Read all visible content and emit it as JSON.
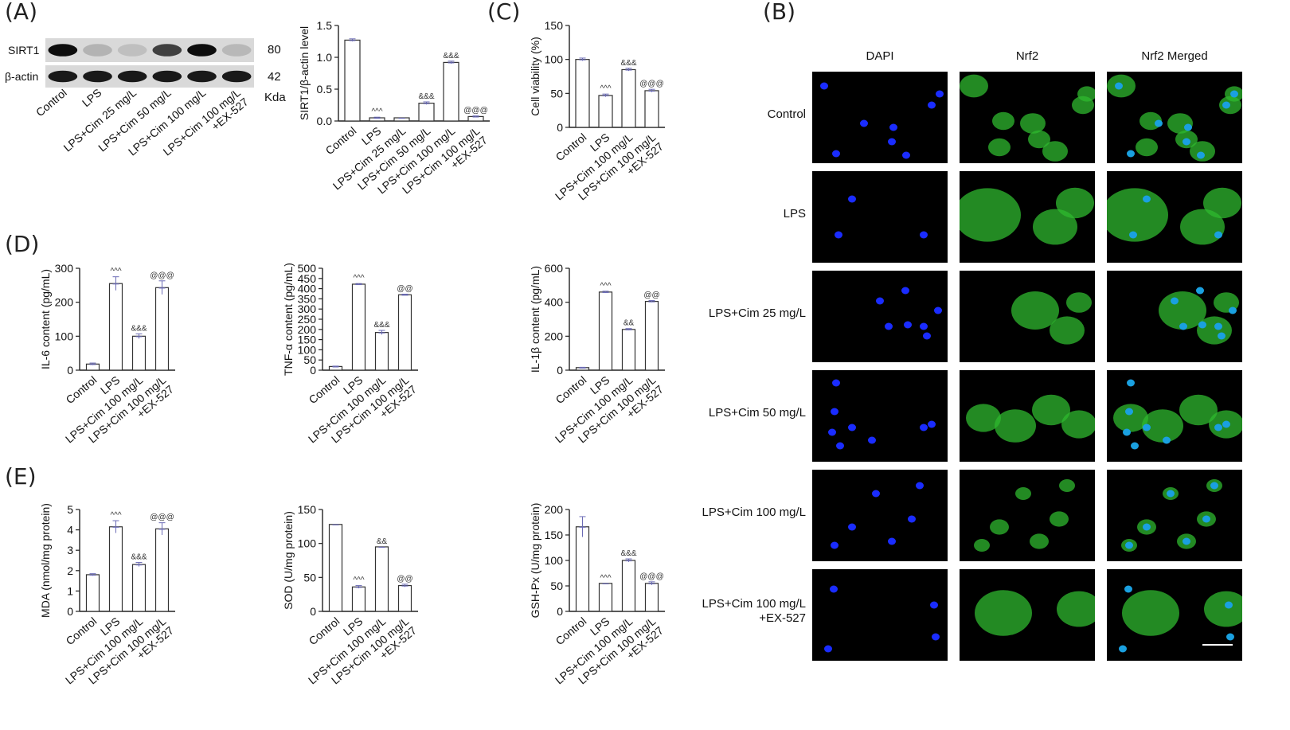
{
  "panels": {
    "A": "(A)",
    "B": "(B)",
    "C": "(C)",
    "D": "(D)",
    "E": "(E)"
  },
  "blot": {
    "row_labels": [
      "SIRT1",
      "β-actin"
    ],
    "mw": [
      "80",
      "42"
    ],
    "unit": "Kda",
    "lanes": [
      "Control",
      "LPS",
      "LPS+Cim 25 mg/L",
      "LPS+Cim 50 mg/L",
      "LPS+Cim 100 mg/L",
      "LPS+Cim 100 mg/L\n+EX-527"
    ],
    "sirt1_intensity": [
      0.95,
      0.3,
      0.25,
      0.75,
      0.95,
      0.28
    ],
    "actin_intensity": [
      0.9,
      0.9,
      0.9,
      0.9,
      0.9,
      0.9
    ]
  },
  "microscopy": {
    "columns": [
      "DAPI",
      "Nrf2",
      "Nrf2 Merged"
    ],
    "rows": [
      "Control",
      "LPS",
      "LPS+Cim 25 mg/L",
      "LPS+Cim 50 mg/L",
      "LPS+Cim 100 mg/L",
      "LPS+Cim 100 mg/L\n+EX-527"
    ],
    "colors": {
      "dapi": "#1a2cff",
      "nrf2": "#2fb82f",
      "merged_nucleus": "#1aa0e0"
    }
  },
  "chart_data": [
    {
      "id": "sirt1",
      "type": "bar",
      "title": "",
      "ylabel": "SIRT1/β-actin level",
      "ylim": [
        0,
        1.5
      ],
      "yticks": [
        "0.0",
        "0.5",
        "1.0",
        "1.5"
      ],
      "categories": [
        "Control",
        "LPS",
        "LPS+Cim 25 mg/L",
        "LPS+Cim 50 mg/L",
        "LPS+Cim 100 mg/L",
        "LPS+Cim 100 mg/L\n+EX-527"
      ],
      "values": [
        1.27,
        0.05,
        0.05,
        0.28,
        0.92,
        0.07
      ],
      "errors": [
        0.02,
        0.01,
        0.0,
        0.02,
        0.02,
        0.01
      ],
      "annotations": [
        "",
        "^^^",
        "",
        "&&&",
        "&&&",
        "@@@"
      ]
    },
    {
      "id": "viability",
      "type": "bar",
      "title": "",
      "ylabel": "Cell viability (%)",
      "ylim": [
        0,
        150
      ],
      "yticks": [
        "0",
        "50",
        "100",
        "150"
      ],
      "categories": [
        "Control",
        "LPS",
        "LPS+Cim 100 mg/L",
        "LPS+Cim 100 mg/L\n+EX-527"
      ],
      "values": [
        100,
        47,
        85,
        54
      ],
      "errors": [
        2,
        2,
        2,
        2
      ],
      "annotations": [
        "",
        "^^^",
        "&&&",
        "@@@"
      ]
    },
    {
      "id": "il6",
      "type": "bar",
      "title": "",
      "ylabel": "IL-6 content (pg/mL)",
      "ylim": [
        0,
        300
      ],
      "yticks": [
        "0",
        "100",
        "200",
        "300"
      ],
      "categories": [
        "Control",
        "LPS",
        "LPS+Cim 100 mg/L",
        "LPS+Cim 100 mg/L\n+EX-527"
      ],
      "values": [
        18,
        255,
        100,
        243
      ],
      "errors": [
        3,
        20,
        7,
        20
      ],
      "annotations": [
        "",
        "^^^",
        "&&&",
        "@@@"
      ]
    },
    {
      "id": "tnf",
      "type": "bar",
      "title": "",
      "ylabel": "TNF-α content (pg/mL)",
      "ylim": [
        0,
        500
      ],
      "yticks": [
        "0",
        "50",
        "100",
        "150",
        "200",
        "250",
        "300",
        "350",
        "400",
        "450",
        "500"
      ],
      "categories": [
        "Control",
        "LPS",
        "LPS+Cim 100 mg/L",
        "LPS+Cim 100 mg/L\n+EX-527"
      ],
      "values": [
        18,
        422,
        185,
        370
      ],
      "errors": [
        2,
        3,
        10,
        3
      ],
      "annotations": [
        "",
        "^^^",
        "&&&",
        "@@"
      ]
    },
    {
      "id": "il1b",
      "type": "bar",
      "title": "",
      "ylabel": "IL-1β content (pg/mL)",
      "ylim": [
        0,
        600
      ],
      "yticks": [
        "0",
        "200",
        "400",
        "600"
      ],
      "categories": [
        "Control",
        "LPS",
        "LPS+Cim 100 mg/L",
        "LPS+Cim 100 mg/L\n+EX-527"
      ],
      "values": [
        15,
        460,
        240,
        405
      ],
      "errors": [
        2,
        5,
        5,
        5
      ],
      "annotations": [
        "",
        "^^^",
        "&&",
        "@@"
      ]
    },
    {
      "id": "mda",
      "type": "bar",
      "title": "",
      "ylabel": "MDA (nmol/mg protein)",
      "ylim": [
        0,
        5
      ],
      "yticks": [
        "0",
        "1",
        "2",
        "3",
        "4",
        "5"
      ],
      "categories": [
        "Control",
        "LPS",
        "LPS+Cim 100 mg/L",
        "LPS+Cim 100 mg/L\n+EX-527"
      ],
      "values": [
        1.8,
        4.15,
        2.3,
        4.05
      ],
      "errors": [
        0.05,
        0.3,
        0.1,
        0.3
      ],
      "annotations": [
        "",
        "^^^",
        "&&&",
        "@@@"
      ]
    },
    {
      "id": "sod",
      "type": "bar",
      "title": "",
      "ylabel": "SOD (U/mg protein)",
      "ylim": [
        0,
        150
      ],
      "yticks": [
        "0",
        "50",
        "100",
        "150"
      ],
      "categories": [
        "Control",
        "LPS",
        "LPS+Cim 100 mg/L",
        "LPS+Cim 100 mg/L\n+EX-527"
      ],
      "values": [
        128,
        36,
        95,
        38
      ],
      "errors": [
        0,
        2,
        0,
        2
      ],
      "annotations": [
        "",
        "^^^",
        "&&",
        "@@"
      ]
    },
    {
      "id": "gsh",
      "type": "bar",
      "title": "",
      "ylabel": "GSH-Px (U/mg protein)",
      "ylim": [
        0,
        200
      ],
      "yticks": [
        "0",
        "50",
        "100",
        "150",
        "200"
      ],
      "categories": [
        "Control",
        "LPS",
        "LPS+Cim 100 mg/L",
        "LPS+Cim 100 mg/L\n+EX-527"
      ],
      "values": [
        166,
        55,
        100,
        55
      ],
      "errors": [
        20,
        0,
        3,
        3
      ],
      "annotations": [
        "",
        "^^^",
        "&&&",
        "@@@"
      ]
    }
  ]
}
